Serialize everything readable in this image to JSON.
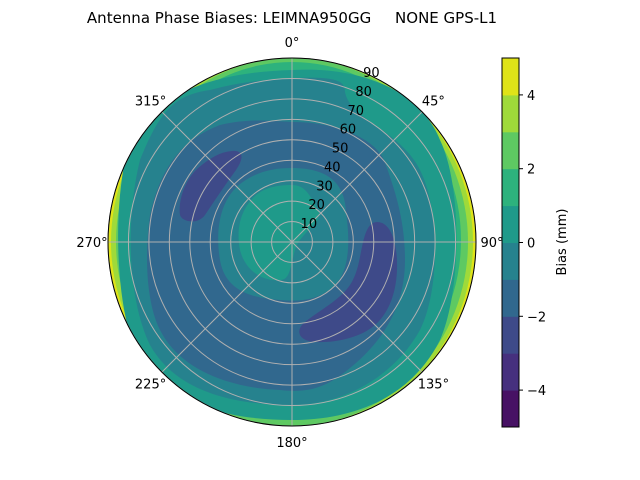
{
  "chart_data": {
    "type": "heatmap",
    "subtype": "polar-filled-contour",
    "title": "Antenna Phase Biases: LEIMNA950GG     NONE GPS-L1",
    "angular_ticks": [
      "0°",
      "45°",
      "90°",
      "135°",
      "180°",
      "225°",
      "270°",
      "315°"
    ],
    "angular_tick_values": [
      0,
      45,
      90,
      135,
      180,
      225,
      270,
      315
    ],
    "radial_ticks": [
      "10",
      "20",
      "30",
      "40",
      "50",
      "60",
      "70",
      "80",
      "90"
    ],
    "radial_tick_values": [
      10,
      20,
      30,
      40,
      50,
      60,
      70,
      80,
      90
    ],
    "rlim": [
      0,
      90
    ],
    "grid": true,
    "colorbar": {
      "label": "Bias (mm)",
      "range": [
        -5,
        5
      ],
      "levels": [
        -5,
        -4,
        -3,
        -2,
        -1,
        0,
        1,
        2,
        3,
        4,
        5
      ],
      "tick_labels": [
        "−4",
        "−2",
        "0",
        "2",
        "4"
      ],
      "tick_values": [
        -4,
        -2,
        0,
        2,
        4
      ],
      "colors": [
        "#471164",
        "#46307e",
        "#3e4a89",
        "#31688e",
        "#26828e",
        "#1f9a8a",
        "#2db27d",
        "#5ec962",
        "#9fda3a",
        "#dfe318"
      ],
      "colormap": "viridis"
    },
    "regions": [
      {
        "description_level": "4 to 5",
        "location": "outer rim at 90° and 270°"
      },
      {
        "description_level": "-3 to -2",
        "location": "blob near azimuth 300-320°, elevation 40-70"
      },
      {
        "description_level": "-3 to -2",
        "location": "blob near azimuth 110-160°, elevation 35-70"
      },
      {
        "description_level": "0 to 1",
        "location": "center, zenith area"
      }
    ]
  }
}
